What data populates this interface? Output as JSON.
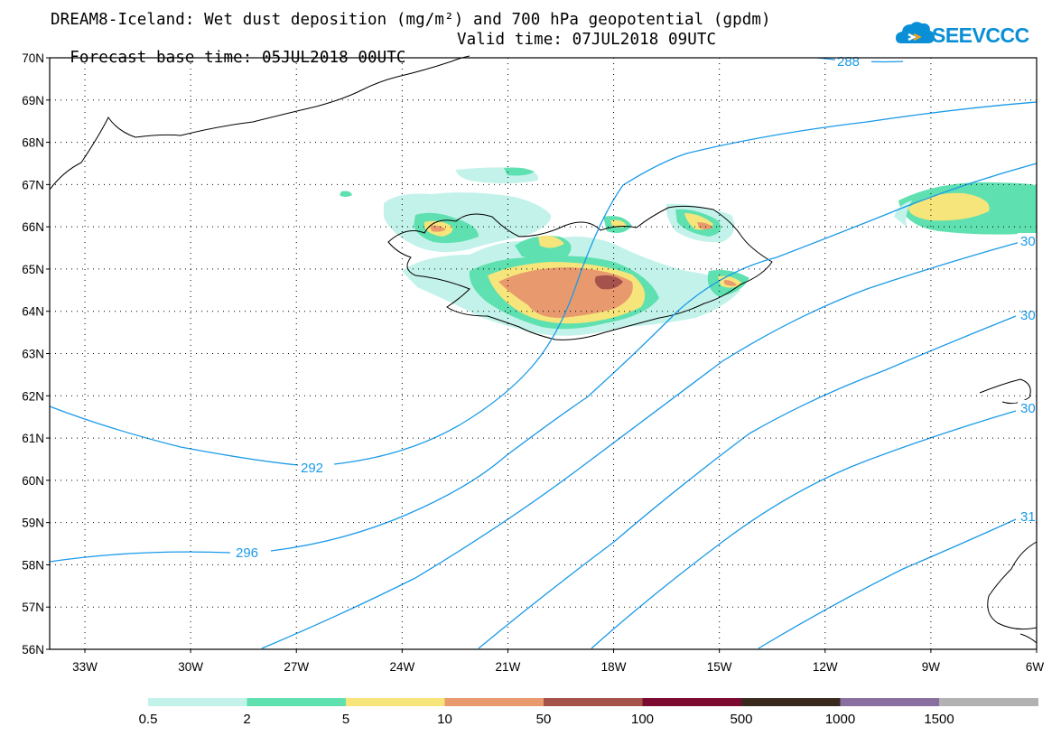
{
  "title": {
    "line1": "DREAM8-Iceland: Wet dust deposition (mg/m²) and 700 hPa geopotential (gpdm)",
    "line2_base": "Forecast base time: 05JUL2018 00UTC",
    "line2_valid": "Valid time: 07JUL2018 09UTC"
  },
  "logo": {
    "text": "SEEVCCC",
    "icon": "cloud-icon"
  },
  "map": {
    "lat_labels": [
      "70N",
      "69N",
      "68N",
      "67N",
      "66N",
      "65N",
      "64N",
      "63N",
      "62N",
      "61N",
      "60N",
      "59N",
      "58N",
      "57N",
      "56N"
    ],
    "lon_labels": [
      "33W",
      "30W",
      "27W",
      "24W",
      "21W",
      "18W",
      "15W",
      "12W",
      "9W",
      "6W"
    ],
    "contour_labels": [
      "288",
      "292",
      "296",
      "30",
      "30",
      "30",
      "31"
    ],
    "contour_color": "#1a9ae8",
    "grid": "dotted"
  },
  "legend": {
    "colors": [
      "#c3f2ea",
      "#5ee0b0",
      "#f6e57a",
      "#e89a6e",
      "#a5524c",
      "#7a0a30",
      "#3a2a1e",
      "#8a70a0",
      "#b2b2b2"
    ],
    "labels": [
      "0.5",
      "2",
      "5",
      "10",
      "50",
      "100",
      "500",
      "1000",
      "1500"
    ]
  }
}
